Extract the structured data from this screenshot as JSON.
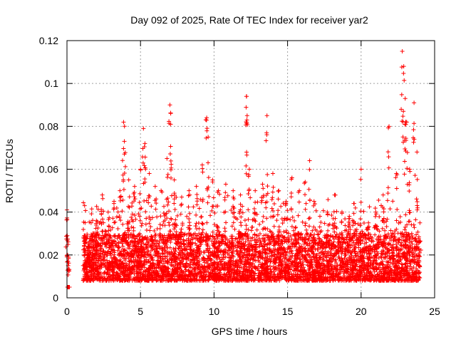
{
  "chart_data": {
    "type": "scatter",
    "title": "Day 092 of 2025, Rate Of TEC Index for receiver yar2",
    "xlabel": "GPS time / hours",
    "ylabel": "ROTI / TECUs",
    "xlim": [
      0,
      25
    ],
    "ylim": [
      0,
      0.12
    ],
    "x_ticks": [
      0,
      5,
      10,
      15,
      20,
      25
    ],
    "x_tick_labels": [
      "0",
      "5",
      "10",
      "15",
      "20",
      "25"
    ],
    "y_ticks": [
      0,
      0.02,
      0.04,
      0.06,
      0.08,
      0.1,
      0.12
    ],
    "y_tick_labels": [
      "0",
      "0.02",
      "0.04",
      "0.06",
      "0.08",
      "0.1",
      "0.12"
    ],
    "grid": true,
    "marker": "+",
    "color": "#ff0000",
    "series": [
      {
        "name": "ROTI",
        "x": [
          0.0,
          0.02,
          0.05,
          0.08,
          0.1,
          1.2,
          1.5,
          1.8,
          2.0,
          2.4,
          2.8,
          3.2,
          3.6,
          3.85,
          3.9,
          4.2,
          4.6,
          5.0,
          5.2,
          5.3,
          5.6,
          6.0,
          6.4,
          6.8,
          7.0,
          7.05,
          7.3,
          7.8,
          8.3,
          8.8,
          9.2,
          9.5,
          9.6,
          9.9,
          10.3,
          10.8,
          11.3,
          11.8,
          12.2,
          12.25,
          12.4,
          12.8,
          13.3,
          13.6,
          14.0,
          14.4,
          14.9,
          15.3,
          15.8,
          16.2,
          16.5,
          16.8,
          17.2,
          17.7,
          18.2,
          18.7,
          19.2,
          19.5,
          20.0,
          20.5,
          21.0,
          21.5,
          21.9,
          22.4,
          22.8,
          22.9,
          23.0,
          23.1,
          23.3,
          23.6,
          23.8,
          24.0
        ],
        "y": [
          0.041,
          0.029,
          0.02,
          0.015,
          0.005,
          0.043,
          0.025,
          0.03,
          0.036,
          0.048,
          0.04,
          0.045,
          0.05,
          0.082,
          0.073,
          0.055,
          0.052,
          0.06,
          0.079,
          0.072,
          0.058,
          0.052,
          0.05,
          0.065,
          0.09,
          0.081,
          0.055,
          0.047,
          0.05,
          0.052,
          0.062,
          0.084,
          0.075,
          0.055,
          0.05,
          0.053,
          0.05,
          0.048,
          0.094,
          0.085,
          0.06,
          0.05,
          0.053,
          0.085,
          0.058,
          0.05,
          0.045,
          0.056,
          0.05,
          0.054,
          0.064,
          0.045,
          0.038,
          0.04,
          0.048,
          0.04,
          0.038,
          0.044,
          0.06,
          0.035,
          0.04,
          0.048,
          0.08,
          0.058,
          0.115,
          0.108,
          0.093,
          0.082,
          0.06,
          0.091,
          0.068,
          0.035
        ]
      }
    ],
    "dense_band": {
      "x_start": 1.1,
      "x_end": 24.0,
      "y_floor": 0.005,
      "y_typical_low": 0.008,
      "y_typical_high": 0.03
    }
  }
}
